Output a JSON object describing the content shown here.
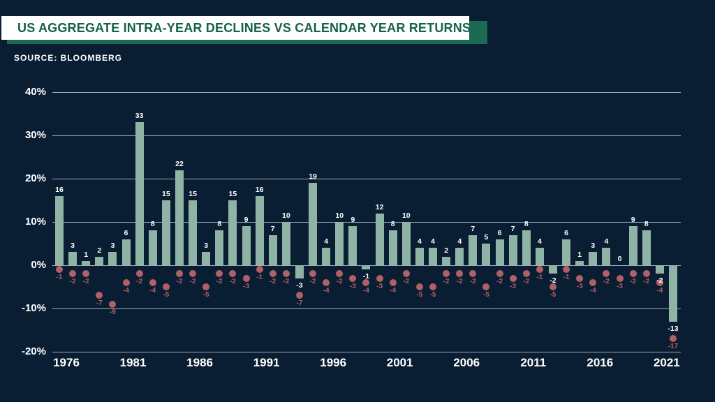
{
  "header": {
    "title": "US AGGREGATE INTRA-YEAR DECLINES VS CALENDAR YEAR RETURNS",
    "source": "SOURCE: BLOOMBERG"
  },
  "colors": {
    "background": "#0A1E33",
    "banner_bg": "#FFFFFF",
    "banner_shadow": "#1B6B53",
    "title_text": "#16604C",
    "bar": "#8FB3A4",
    "bar_label": "#FFFFFF",
    "dot": "#B06066",
    "dot_label": "#B06066",
    "grid": "#C5CFDA",
    "axis_text": "#FFFFFF"
  },
  "chart_data": {
    "type": "bar",
    "title": "US AGGREGATE INTRA-YEAR DECLINES VS CALENDAR YEAR RETURNS",
    "source": "SOURCE: BLOOMBERG",
    "categories": [
      1976,
      1977,
      1978,
      1979,
      1980,
      1981,
      1982,
      1983,
      1984,
      1985,
      1986,
      1987,
      1988,
      1989,
      1990,
      1991,
      1992,
      1993,
      1994,
      1995,
      1996,
      1997,
      1998,
      1999,
      2000,
      2001,
      2002,
      2003,
      2004,
      2005,
      2006,
      2007,
      2008,
      2009,
      2010,
      2011,
      2012,
      2013,
      2014,
      2015,
      2016,
      2017,
      2018,
      2019,
      2020,
      2021,
      2022
    ],
    "series": [
      {
        "name": "Calendar year returns (%)",
        "style": "bar",
        "values": [
          16,
          3,
          1,
          2,
          3,
          6,
          33,
          8,
          15,
          22,
          15,
          3,
          8,
          15,
          9,
          16,
          7,
          10,
          -3,
          19,
          4,
          10,
          9,
          -1,
          12,
          8,
          10,
          4,
          4,
          2,
          4,
          7,
          5,
          6,
          7,
          8,
          4,
          -2,
          6,
          1,
          3,
          4,
          0,
          9,
          8,
          -2,
          -13
        ]
      },
      {
        "name": "Intra-year declines (%)",
        "style": "dot",
        "values": [
          -1,
          -2,
          -2,
          -7,
          -9,
          -4,
          -2,
          -4,
          -5,
          -2,
          -2,
          -5,
          -2,
          -2,
          -3,
          -1,
          -2,
          -2,
          -7,
          -2,
          -4,
          -2,
          -3,
          -4,
          -3,
          -4,
          -2,
          -5,
          -5,
          -2,
          -2,
          -2,
          -5,
          -2,
          -3,
          -2,
          -1,
          -5,
          -1,
          -3,
          -4,
          -2,
          -3,
          -2,
          -2,
          -4,
          -17
        ]
      }
    ],
    "ylim": [
      -20,
      40
    ],
    "yticks": [
      "40%",
      "30%",
      "20%",
      "10%",
      "0%",
      "-10%",
      "-20%"
    ],
    "xticks": [
      "1976",
      "1981",
      "1986",
      "1991",
      "1996",
      "2001",
      "2006",
      "2011",
      "2016",
      "2021"
    ],
    "grid": true,
    "legend": "none",
    "xlabel": "",
    "ylabel": ""
  }
}
